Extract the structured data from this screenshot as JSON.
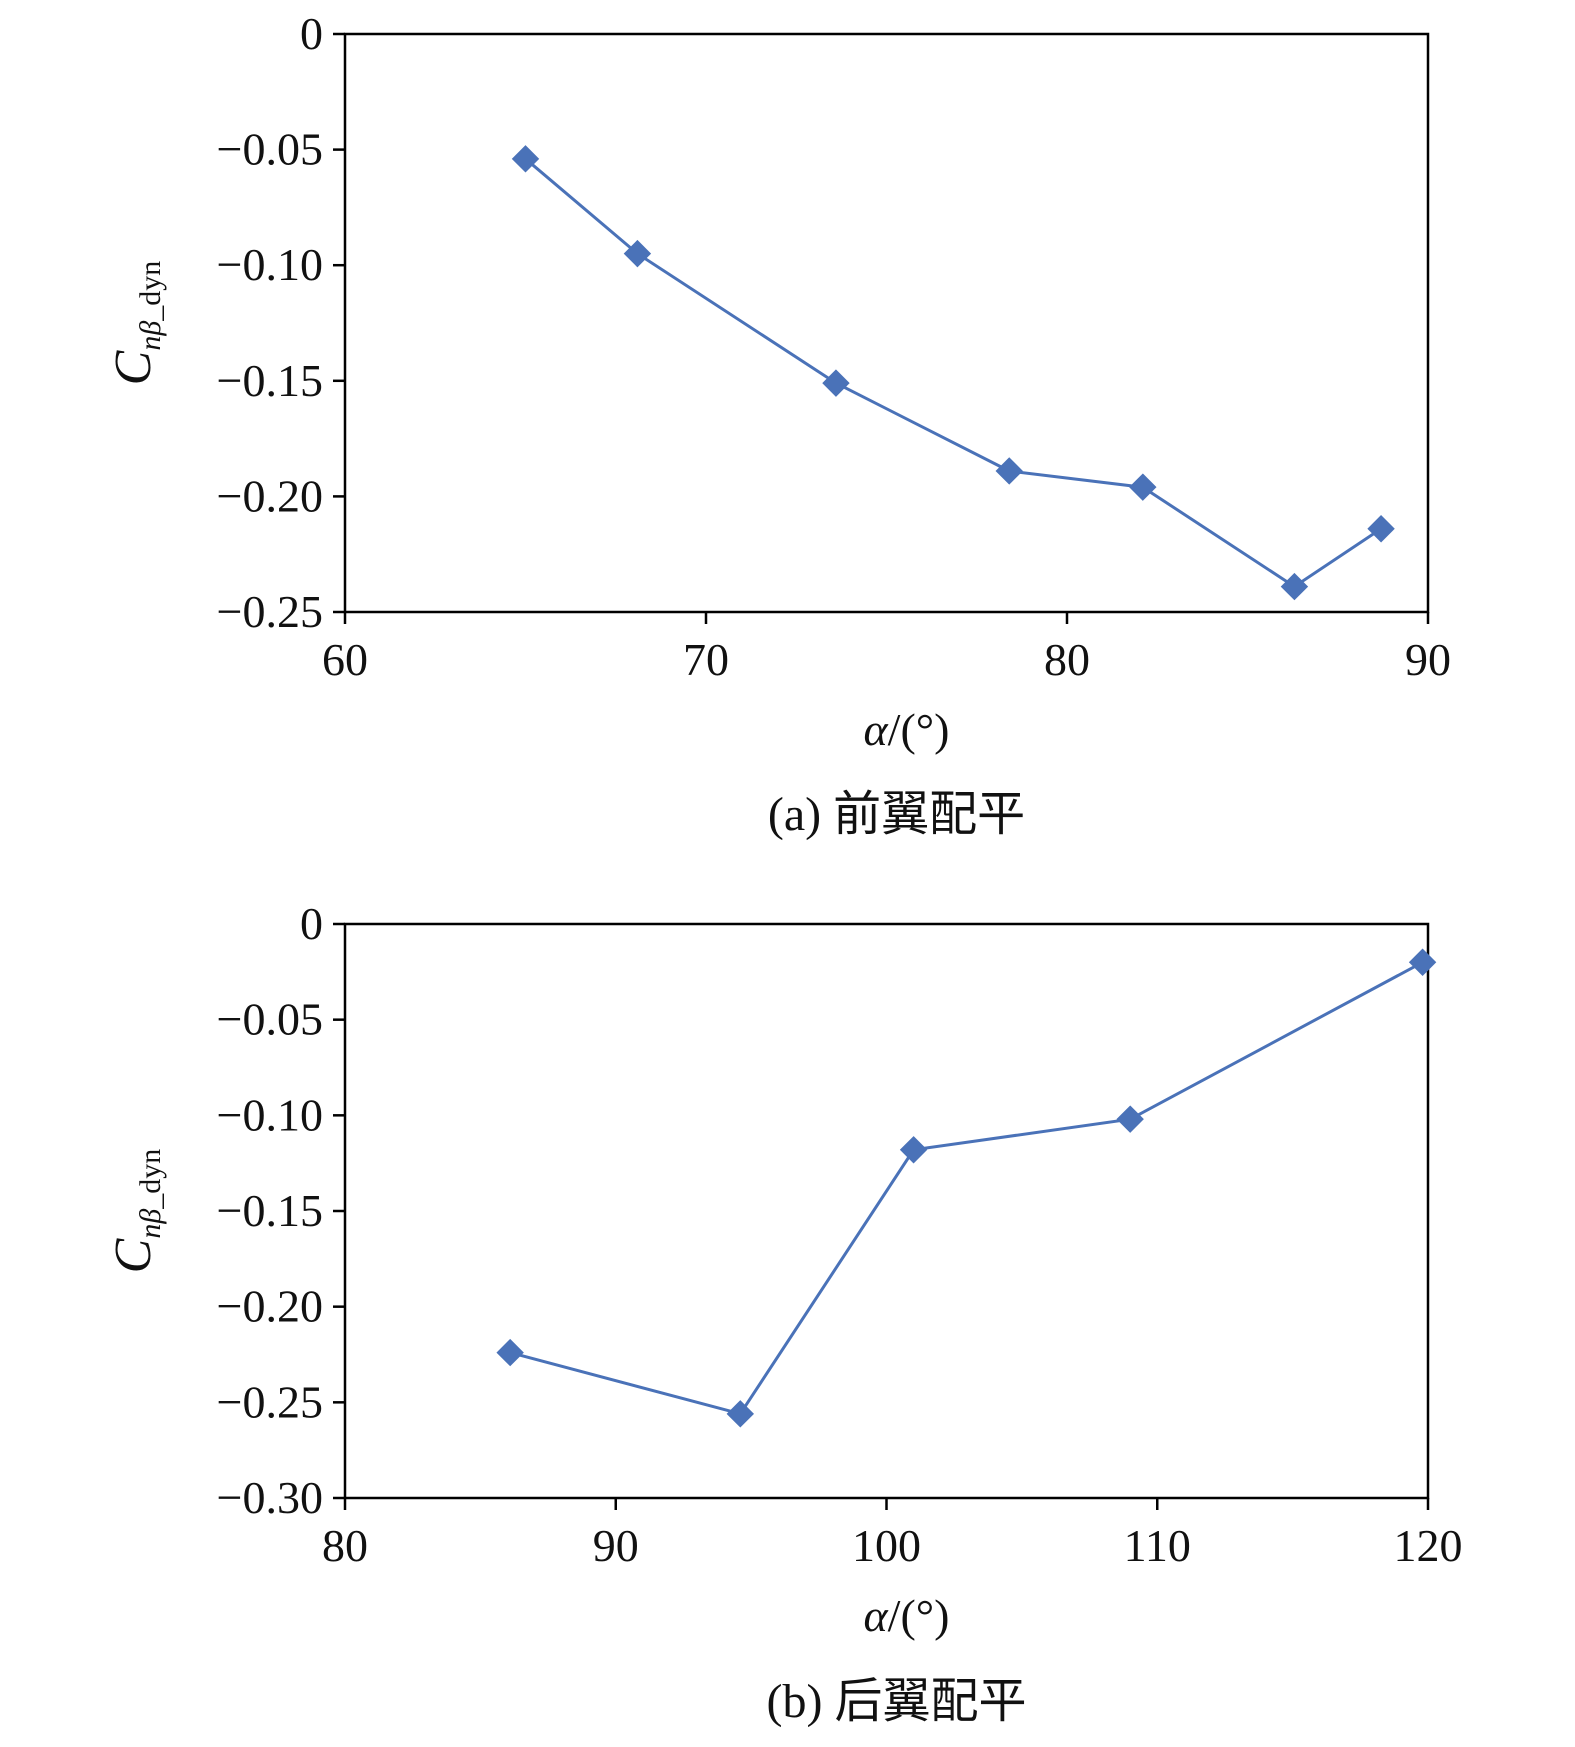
{
  "chart_data": [
    {
      "type": "line",
      "panel_caption": "(a) 前翼配平",
      "xlabel": "α/(°)",
      "ylabel": {
        "base": "C",
        "subscript_italic": "nβ",
        "subscript_rest": "_dyn"
      },
      "xlim": [
        60,
        90
      ],
      "ylim": [
        -0.25,
        0
      ],
      "x_ticks": [
        60,
        70,
        80,
        90
      ],
      "x_tick_labels": [
        "60",
        "70",
        "80",
        "90"
      ],
      "y_ticks": [
        0,
        -0.05,
        -0.1,
        -0.15,
        -0.2,
        -0.25
      ],
      "y_tick_labels": [
        "0",
        "−0.05",
        "−0.10",
        "−0.15",
        "−0.20",
        "−0.25"
      ],
      "grid": false,
      "legend": "none",
      "series": [
        {
          "color": "#4a72b8",
          "marker": "diamond",
          "x": [
            65.0,
            68.1,
            73.6,
            78.4,
            82.1,
            86.3,
            88.7
          ],
          "y": [
            -0.054,
            -0.095,
            -0.151,
            -0.189,
            -0.196,
            -0.239,
            -0.214
          ]
        }
      ]
    },
    {
      "type": "line",
      "panel_caption": "(b) 后翼配平",
      "xlabel": "α/(°)",
      "ylabel": {
        "base": "C",
        "subscript_italic": "nβ",
        "subscript_rest": "_dyn"
      },
      "xlim": [
        80,
        120
      ],
      "ylim": [
        -0.3,
        0
      ],
      "x_ticks": [
        80,
        90,
        100,
        110,
        120
      ],
      "x_tick_labels": [
        "80",
        "90",
        "100",
        "110",
        "120"
      ],
      "y_ticks": [
        0,
        -0.05,
        -0.1,
        -0.15,
        -0.2,
        -0.25,
        -0.3
      ],
      "y_tick_labels": [
        "0",
        "−0.05",
        "−0.10",
        "−0.15",
        "−0.20",
        "−0.25",
        "−0.30"
      ],
      "grid": false,
      "legend": "none",
      "series": [
        {
          "color": "#4a72b8",
          "marker": "diamond",
          "x": [
            86.1,
            94.6,
            101.0,
            109.0,
            119.8
          ],
          "y": [
            -0.224,
            -0.256,
            -0.118,
            -0.102,
            -0.02
          ]
        }
      ]
    }
  ]
}
